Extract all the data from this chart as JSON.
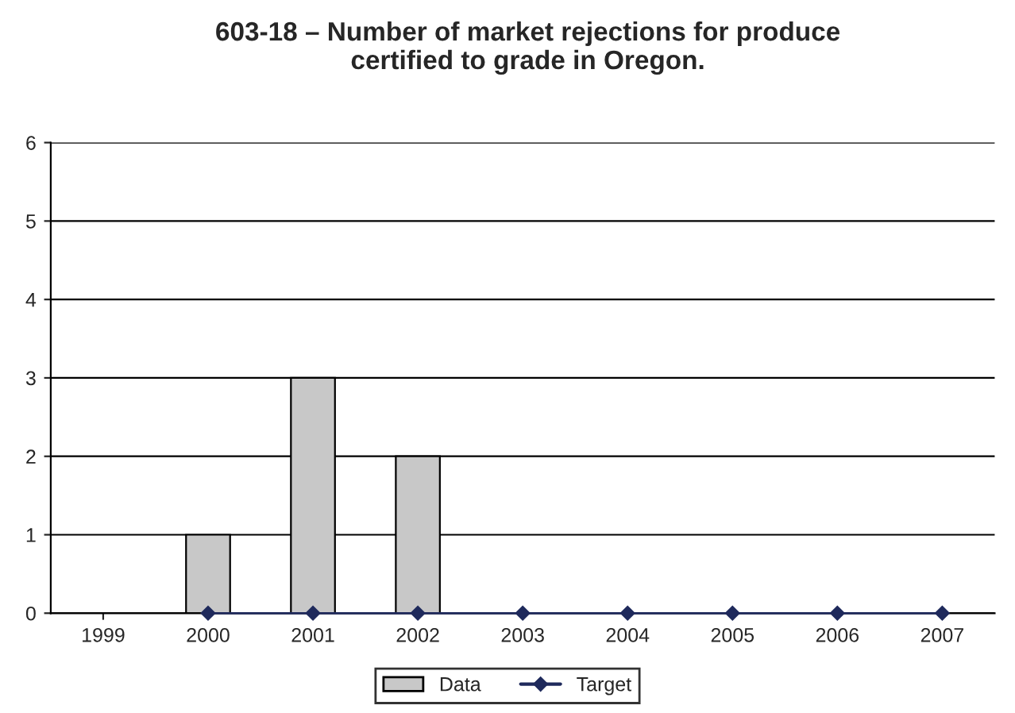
{
  "chart_data": {
    "type": "bar",
    "title": "603-18 – Number of market rejections for produce\ncertified to grade in Oregon.",
    "categories": [
      "1999",
      "2000",
      "2001",
      "2002",
      "2003",
      "2004",
      "2005",
      "2006",
      "2007"
    ],
    "series": [
      {
        "name": "Data",
        "color": "#c8c8c8",
        "values": [
          null,
          1,
          3,
          2,
          null,
          null,
          null,
          null,
          null
        ]
      },
      {
        "name": "Target",
        "type": "line",
        "color": "#1f2a5c",
        "marker": "diamond",
        "values": [
          null,
          0,
          0,
          0,
          0,
          0,
          0,
          0,
          0
        ]
      }
    ],
    "ylim": [
      0,
      6
    ],
    "yticks": [
      0,
      1,
      2,
      3,
      4,
      5,
      6
    ],
    "grid": "y",
    "legend": "bottom"
  }
}
